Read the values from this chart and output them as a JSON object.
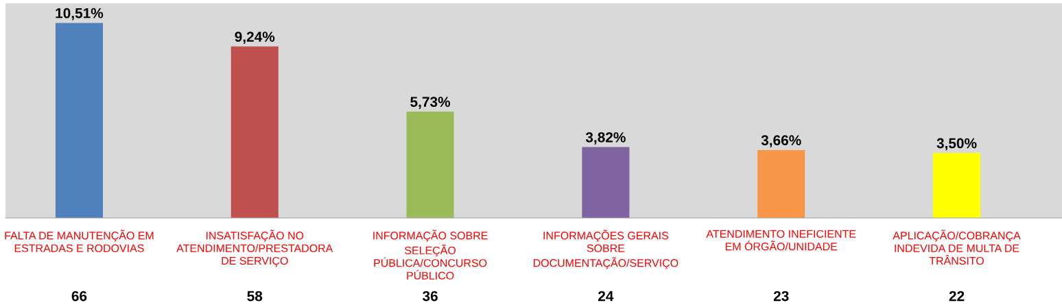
{
  "chart_data": {
    "type": "bar",
    "categories": [
      "FALTA DE MANUTENÇÃO EM\nESTRADAS E RODOVIAS",
      "INSATISFAÇÃO NO\nATENDIMENTO/PRESTADORA\nDE SERVIÇO",
      "INFORMAÇÃO SOBRE\nSELEÇÃO\nPÚBLICA/CONCURSO\nPÚBLICO",
      "INFORMAÇÕES GERAIS\nSOBRE\nDOCUMENTAÇÃO/SERVIÇO",
      "ATENDIMENTO INEFICIENTE\nEM ÓRGÃO/UNIDADE",
      "APLICAÇÃO/COBRANÇA\nINDEVIDA DE MULTA DE\nTRÂNSITO"
    ],
    "values": [
      10.51,
      9.24,
      5.73,
      3.82,
      3.66,
      3.5
    ],
    "colors": [
      "#4f81bd",
      "#c0504d",
      "#9bbb59",
      "#8064a2",
      "#f79646",
      "#ffff00"
    ],
    "value_labels": [
      "10,51%",
      "9,24%",
      "5,73%",
      "3,82%",
      "3,66%",
      "3,50%"
    ],
    "annotations": [
      "66",
      "58",
      "36",
      "24",
      "23",
      "22"
    ]
  }
}
